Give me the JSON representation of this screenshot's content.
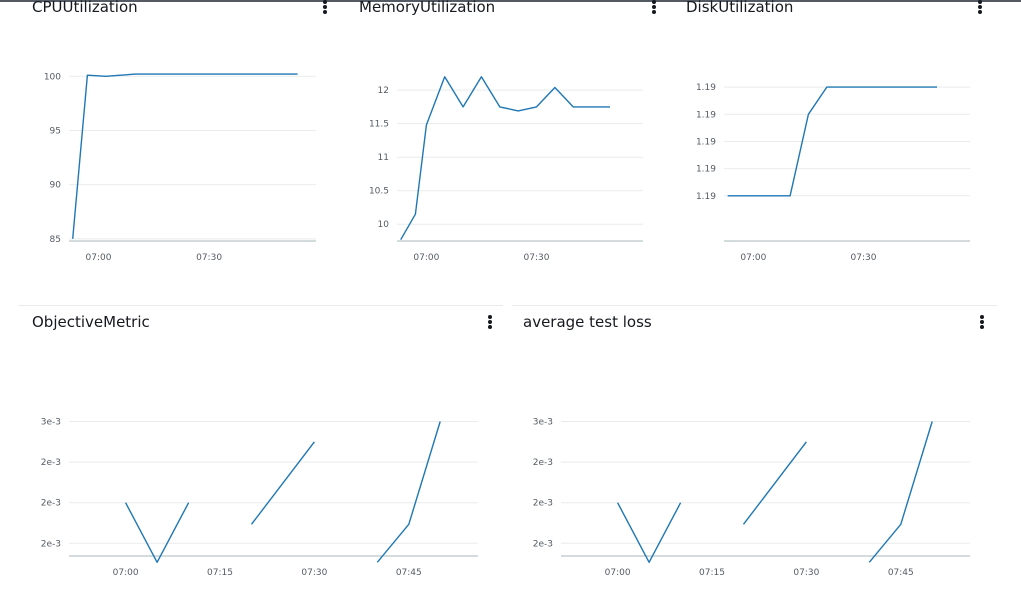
{
  "colors": {
    "series": "#1f77b4",
    "grid": "#e9ebed",
    "axis": "#aab7b8"
  },
  "chart_data": [
    {
      "id": "cpu",
      "type": "line",
      "title": "CPUUtilization",
      "xlim": [
        "06:52",
        "07:59"
      ],
      "ylim": [
        84.8,
        101.5
      ],
      "yticks": [
        {
          "v": 85,
          "label": "85"
        },
        {
          "v": 90,
          "label": "90"
        },
        {
          "v": 95,
          "label": "95"
        },
        {
          "v": 100,
          "label": "100"
        }
      ],
      "xticks": [
        {
          "t": "07:00",
          "label": "07:00"
        },
        {
          "t": "07:30",
          "label": "07:30"
        }
      ],
      "segments": [
        [
          [
            "06:53",
            85
          ],
          [
            "06:57",
            100.1
          ],
          [
            "07:02",
            100
          ],
          [
            "07:06",
            100.1
          ],
          [
            "07:10",
            100.2
          ],
          [
            "07:54",
            100.2
          ]
        ]
      ]
    },
    {
      "id": "memory",
      "type": "line",
      "title": "MemoryUtilization",
      "xlim": [
        "06:52",
        "07:59"
      ],
      "ylim": [
        9.75,
        12.45
      ],
      "yticks": [
        {
          "v": 10,
          "label": "10"
        },
        {
          "v": 10.5,
          "label": "10.5"
        },
        {
          "v": 11,
          "label": "11"
        },
        {
          "v": 11.5,
          "label": "11.5"
        },
        {
          "v": 12,
          "label": "12"
        }
      ],
      "xticks": [
        {
          "t": "07:00",
          "label": "07:00"
        },
        {
          "t": "07:30",
          "label": "07:30"
        }
      ],
      "segments": [
        [
          [
            "06:53",
            9.77
          ],
          [
            "06:57",
            10.15
          ],
          [
            "07:00",
            11.48
          ],
          [
            "07:05",
            12.2
          ],
          [
            "07:10",
            11.75
          ],
          [
            "07:15",
            12.2
          ],
          [
            "07:20",
            11.75
          ],
          [
            "07:25",
            11.69
          ],
          [
            "07:30",
            11.75
          ],
          [
            "07:35",
            12.04
          ],
          [
            "07:40",
            11.75
          ],
          [
            "07:50",
            11.75
          ]
        ]
      ]
    },
    {
      "id": "disk",
      "type": "line",
      "title": "DiskUtilization",
      "xlim": [
        "06:52",
        "07:59"
      ],
      "ylim": [
        1.18985,
        1.19005
      ],
      "yticks": [
        {
          "v": 1.1899,
          "label": "1.19"
        },
        {
          "v": 1.18993,
          "label": "1.19"
        },
        {
          "v": 1.18996,
          "label": "1.19"
        },
        {
          "v": 1.18999,
          "label": "1.19"
        },
        {
          "v": 1.19002,
          "label": "1.19"
        }
      ],
      "xticks": [
        {
          "t": "07:00",
          "label": "07:00"
        },
        {
          "t": "07:30",
          "label": "07:30"
        }
      ],
      "segments": [
        [
          [
            "06:53",
            1.1899
          ],
          [
            "07:10",
            1.1899
          ],
          [
            "07:15",
            1.18999
          ],
          [
            "07:20",
            1.19002
          ],
          [
            "07:50",
            1.19002
          ]
        ]
      ]
    },
    {
      "id": "objective",
      "type": "line",
      "title": "ObjectiveMetric",
      "xlim": [
        "06:51",
        "07:56"
      ],
      "ylim": [
        0.00165,
        0.0031
      ],
      "yticks": [
        {
          "v": 0.00175,
          "label": "2e-3"
        },
        {
          "v": 0.00207,
          "label": "2e-3"
        },
        {
          "v": 0.00239,
          "label": "2e-3"
        },
        {
          "v": 0.00271,
          "label": "3e-3"
        }
      ],
      "xticks": [
        {
          "t": "07:00",
          "label": "07:00"
        },
        {
          "t": "07:15",
          "label": "07:15"
        },
        {
          "t": "07:30",
          "label": "07:30"
        },
        {
          "t": "07:45",
          "label": "07:45"
        }
      ],
      "segments": [
        [
          [
            "07:00",
            0.00207
          ],
          [
            "07:05",
            0.0016
          ],
          [
            "07:10",
            0.00207
          ]
        ],
        [
          [
            "07:20",
            0.0019
          ],
          [
            "07:30",
            0.00255
          ]
        ],
        [
          [
            "07:40",
            0.0016
          ],
          [
            "07:45",
            0.0019
          ],
          [
            "07:50",
            0.00271
          ]
        ]
      ]
    },
    {
      "id": "testloss",
      "type": "line",
      "title": "average test loss",
      "xlim": [
        "06:51",
        "07:56"
      ],
      "ylim": [
        0.00165,
        0.0031
      ],
      "yticks": [
        {
          "v": 0.00175,
          "label": "2e-3"
        },
        {
          "v": 0.00207,
          "label": "2e-3"
        },
        {
          "v": 0.00239,
          "label": "2e-3"
        },
        {
          "v": 0.00271,
          "label": "3e-3"
        }
      ],
      "xticks": [
        {
          "t": "07:00",
          "label": "07:00"
        },
        {
          "t": "07:15",
          "label": "07:15"
        },
        {
          "t": "07:30",
          "label": "07:30"
        },
        {
          "t": "07:45",
          "label": "07:45"
        }
      ],
      "segments": [
        [
          [
            "07:00",
            0.00207
          ],
          [
            "07:05",
            0.0016
          ],
          [
            "07:10",
            0.00207
          ]
        ],
        [
          [
            "07:20",
            0.0019
          ],
          [
            "07:30",
            0.00255
          ]
        ],
        [
          [
            "07:40",
            0.0016
          ],
          [
            "07:45",
            0.0019
          ],
          [
            "07:50",
            0.00271
          ]
        ]
      ]
    }
  ]
}
